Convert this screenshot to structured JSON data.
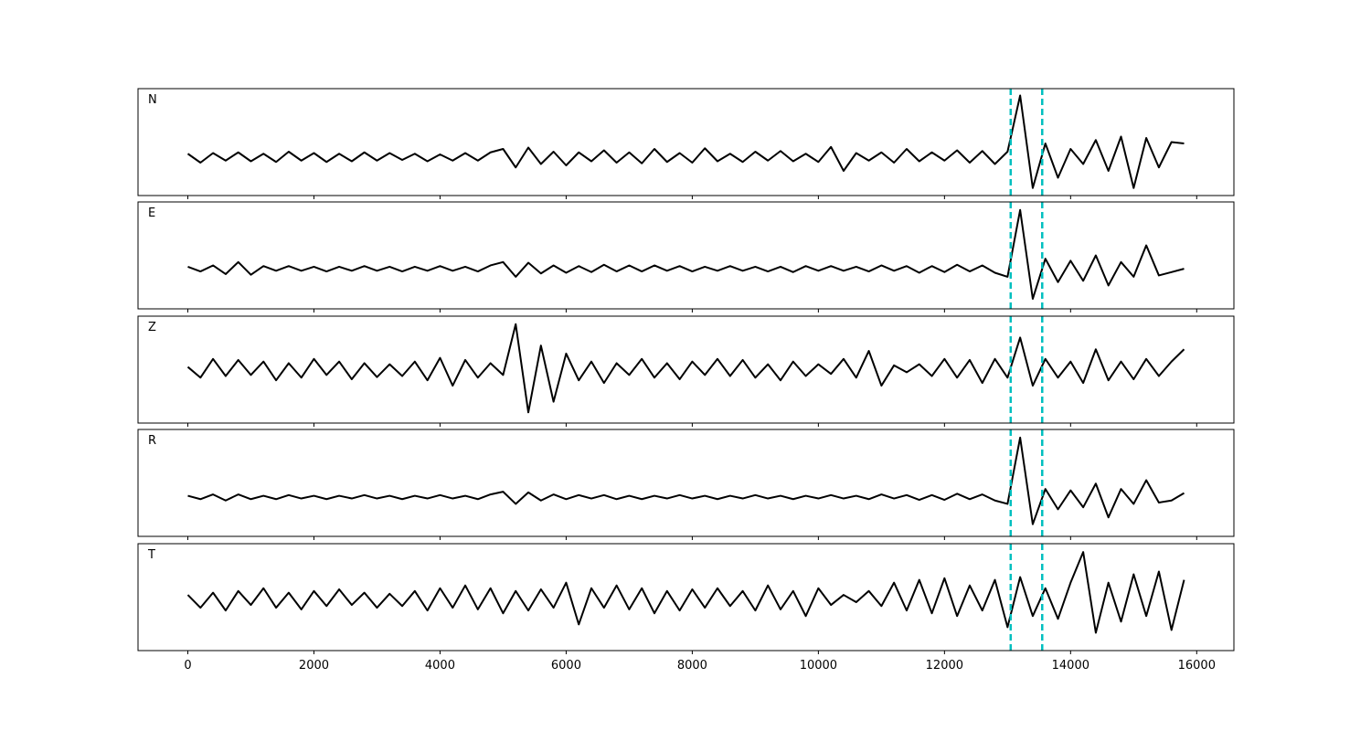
{
  "chart_data": [
    {
      "type": "line",
      "title": "N",
      "color": "#000000",
      "vlines": [
        13050,
        13550
      ],
      "vline_color": "#00bfbf",
      "xlim": [
        -790,
        16590
      ],
      "ylim": [
        -0.56,
        1
      ],
      "xticks": [
        0,
        2000,
        4000,
        6000,
        8000,
        10000,
        12000,
        14000,
        16000
      ],
      "x": [
        0,
        200,
        400,
        600,
        800,
        1000,
        1200,
        1400,
        1600,
        1800,
        2000,
        2200,
        2400,
        2600,
        2800,
        3000,
        3200,
        3400,
        3600,
        3800,
        4000,
        4200,
        4400,
        4600,
        4800,
        5000,
        5200,
        5400,
        5600,
        5800,
        6000,
        6200,
        6400,
        6600,
        6800,
        7000,
        7200,
        7400,
        7600,
        7800,
        8000,
        8200,
        8400,
        8600,
        8800,
        9000,
        9200,
        9400,
        9600,
        9800,
        10000,
        10200,
        10400,
        10600,
        10800,
        11000,
        11200,
        11400,
        11600,
        11800,
        12000,
        12200,
        12400,
        12600,
        12800,
        13000,
        13200,
        13400,
        13600,
        13800,
        14000,
        14200,
        14400,
        14600,
        14800,
        15000,
        15200,
        15400,
        15600,
        15800
      ],
      "values": [
        0.05,
        -0.08,
        0.06,
        -0.05,
        0.07,
        -0.06,
        0.05,
        -0.07,
        0.08,
        -0.05,
        0.06,
        -0.07,
        0.05,
        -0.06,
        0.07,
        -0.05,
        0.06,
        -0.04,
        0.05,
        -0.06,
        0.04,
        -0.05,
        0.06,
        -0.05,
        0.07,
        0.12,
        -0.15,
        0.14,
        -0.1,
        0.08,
        -0.12,
        0.07,
        -0.06,
        0.1,
        -0.08,
        0.07,
        -0.09,
        0.12,
        -0.07,
        0.06,
        -0.08,
        0.13,
        -0.06,
        0.05,
        -0.07,
        0.08,
        -0.05,
        0.09,
        -0.06,
        0.05,
        -0.07,
        0.15,
        -0.2,
        0.06,
        -0.05,
        0.07,
        -0.08,
        0.12,
        -0.06,
        0.07,
        -0.05,
        0.1,
        -0.08,
        0.09,
        -0.1,
        0.08,
        0.9,
        -0.45,
        0.2,
        -0.3,
        0.12,
        -0.1,
        0.25,
        -0.2,
        0.3,
        -0.45,
        0.28,
        -0.15,
        0.22,
        0.2
      ]
    },
    {
      "type": "line",
      "title": "E",
      "color": "#000000",
      "vlines": [
        13050,
        13550
      ],
      "vline_color": "#00bfbf",
      "xlim": [
        -790,
        16590
      ],
      "ylim": [
        -0.6,
        1
      ],
      "xticks": [
        0,
        2000,
        4000,
        6000,
        8000,
        10000,
        12000,
        14000,
        16000
      ],
      "x": [
        0,
        200,
        400,
        600,
        800,
        1000,
        1200,
        1400,
        1600,
        1800,
        2000,
        2200,
        2400,
        2600,
        2800,
        3000,
        3200,
        3400,
        3600,
        3800,
        4000,
        4200,
        4400,
        4600,
        4800,
        5000,
        5200,
        5400,
        5600,
        5800,
        6000,
        6200,
        6400,
        6600,
        6800,
        7000,
        7200,
        7400,
        7600,
        7800,
        8000,
        8200,
        8400,
        8600,
        8800,
        9000,
        9200,
        9400,
        9600,
        9800,
        10000,
        10200,
        10400,
        10600,
        10800,
        11000,
        11200,
        11400,
        11600,
        11800,
        12000,
        12200,
        12400,
        12600,
        12800,
        13000,
        13200,
        13400,
        13600,
        13800,
        14000,
        14200,
        14400,
        14600,
        14800,
        15000,
        15200,
        15400,
        15600,
        15800
      ],
      "values": [
        0.03,
        -0.04,
        0.05,
        -0.08,
        0.1,
        -0.09,
        0.04,
        -0.03,
        0.04,
        -0.03,
        0.03,
        -0.04,
        0.03,
        -0.03,
        0.04,
        -0.03,
        0.03,
        -0.04,
        0.03,
        -0.03,
        0.04,
        -0.03,
        0.03,
        -0.04,
        0.05,
        0.1,
        -0.12,
        0.09,
        -0.07,
        0.05,
        -0.06,
        0.04,
        -0.05,
        0.06,
        -0.04,
        0.05,
        -0.04,
        0.05,
        -0.03,
        0.04,
        -0.04,
        0.03,
        -0.03,
        0.04,
        -0.03,
        0.03,
        -0.04,
        0.03,
        -0.05,
        0.04,
        -0.03,
        0.04,
        -0.03,
        0.03,
        -0.04,
        0.05,
        -0.03,
        0.04,
        -0.06,
        0.04,
        -0.05,
        0.06,
        -0.04,
        0.05,
        -0.06,
        -0.12,
        0.88,
        -0.45,
        0.15,
        -0.2,
        0.12,
        -0.18,
        0.2,
        -0.25,
        0.1,
        -0.12,
        0.35,
        -0.1,
        -0.05,
        0.0
      ]
    },
    {
      "type": "line",
      "title": "Z",
      "color": "#000000",
      "vlines": [
        13050,
        13550
      ],
      "vline_color": "#00bfbf",
      "xlim": [
        -790,
        16590
      ],
      "ylim": [
        -1,
        1
      ],
      "xticks": [
        0,
        2000,
        4000,
        6000,
        8000,
        10000,
        12000,
        14000,
        16000
      ],
      "x": [
        0,
        200,
        400,
        600,
        800,
        1000,
        1200,
        1400,
        1600,
        1800,
        2000,
        2200,
        2400,
        2600,
        2800,
        3000,
        3200,
        3400,
        3600,
        3800,
        4000,
        4200,
        4400,
        4600,
        4800,
        5000,
        5200,
        5400,
        5600,
        5800,
        6000,
        6200,
        6400,
        6600,
        6800,
        7000,
        7200,
        7400,
        7600,
        7800,
        8000,
        8200,
        8400,
        8600,
        8800,
        9000,
        9200,
        9400,
        9600,
        9800,
        10000,
        10200,
        10400,
        10600,
        10800,
        11000,
        11200,
        11400,
        11600,
        11800,
        12000,
        12200,
        12400,
        12600,
        12800,
        13000,
        13200,
        13400,
        13600,
        13800,
        14000,
        14200,
        14400,
        14600,
        14800,
        15000,
        15200,
        15400,
        15600,
        15800
      ],
      "values": [
        0.05,
        -0.15,
        0.2,
        -0.12,
        0.18,
        -0.1,
        0.15,
        -0.2,
        0.12,
        -0.15,
        0.2,
        -0.1,
        0.15,
        -0.18,
        0.12,
        -0.14,
        0.1,
        -0.12,
        0.15,
        -0.2,
        0.22,
        -0.3,
        0.18,
        -0.15,
        0.12,
        -0.1,
        0.85,
        -0.8,
        0.45,
        -0.6,
        0.3,
        -0.2,
        0.15,
        -0.25,
        0.12,
        -0.1,
        0.2,
        -0.15,
        0.12,
        -0.18,
        0.15,
        -0.1,
        0.2,
        -0.12,
        0.18,
        -0.15,
        0.1,
        -0.2,
        0.15,
        -0.12,
        0.1,
        -0.08,
        0.2,
        -0.15,
        0.35,
        -0.3,
        0.08,
        -0.05,
        0.1,
        -0.12,
        0.2,
        -0.15,
        0.18,
        -0.25,
        0.2,
        -0.15,
        0.6,
        -0.3,
        0.2,
        -0.15,
        0.15,
        -0.25,
        0.38,
        -0.2,
        0.15,
        -0.18,
        0.2,
        -0.12,
        0.15,
        0.38
      ]
    },
    {
      "type": "line",
      "title": "R",
      "color": "#000000",
      "vlines": [
        13050,
        13550
      ],
      "vline_color": "#00bfbf",
      "xlim": [
        -790,
        16590
      ],
      "ylim": [
        -0.58,
        1
      ],
      "xticks": [
        0,
        2000,
        4000,
        6000,
        8000,
        10000,
        12000,
        14000,
        16000
      ],
      "x": [
        0,
        200,
        400,
        600,
        800,
        1000,
        1200,
        1400,
        1600,
        1800,
        2000,
        2200,
        2400,
        2600,
        2800,
        3000,
        3200,
        3400,
        3600,
        3800,
        4000,
        4200,
        4400,
        4600,
        4800,
        5000,
        5200,
        5400,
        5600,
        5800,
        6000,
        6200,
        6400,
        6600,
        6800,
        7000,
        7200,
        7400,
        7600,
        7800,
        8000,
        8200,
        8400,
        8600,
        8800,
        9000,
        9200,
        9400,
        9600,
        9800,
        10000,
        10200,
        10400,
        10600,
        10800,
        11000,
        11200,
        11400,
        11600,
        11800,
        12000,
        12200,
        12400,
        12600,
        12800,
        13000,
        13200,
        13400,
        13600,
        13800,
        14000,
        14200,
        14400,
        14600,
        14800,
        15000,
        15200,
        15400,
        15600,
        15800
      ],
      "values": [
        0.02,
        -0.03,
        0.04,
        -0.05,
        0.04,
        -0.03,
        0.02,
        -0.03,
        0.03,
        -0.02,
        0.02,
        -0.03,
        0.02,
        -0.02,
        0.03,
        -0.02,
        0.02,
        -0.03,
        0.02,
        -0.02,
        0.03,
        -0.02,
        0.02,
        -0.03,
        0.04,
        0.08,
        -0.1,
        0.07,
        -0.05,
        0.04,
        -0.03,
        0.03,
        -0.02,
        0.03,
        -0.03,
        0.02,
        -0.03,
        0.02,
        -0.02,
        0.03,
        -0.02,
        0.02,
        -0.03,
        0.02,
        -0.02,
        0.03,
        -0.02,
        0.02,
        -0.03,
        0.02,
        -0.02,
        0.03,
        -0.02,
        0.02,
        -0.03,
        0.04,
        -0.02,
        0.03,
        -0.04,
        0.03,
        -0.04,
        0.05,
        -0.03,
        0.04,
        -0.05,
        -0.1,
        0.88,
        -0.4,
        0.12,
        -0.18,
        0.1,
        -0.15,
        0.2,
        -0.3,
        0.12,
        -0.1,
        0.25,
        -0.08,
        -0.05,
        0.06
      ]
    },
    {
      "type": "line",
      "title": "T",
      "color": "#000000",
      "vlines": [
        13050,
        13550
      ],
      "vline_color": "#00bfbf",
      "xlim": [
        -790,
        16590
      ],
      "ylim": [
        -0.92,
        1
      ],
      "xticks": [
        0,
        2000,
        4000,
        6000,
        8000,
        10000,
        12000,
        14000,
        16000
      ],
      "x": [
        0,
        200,
        400,
        600,
        800,
        1000,
        1200,
        1400,
        1600,
        1800,
        2000,
        2200,
        2400,
        2600,
        2800,
        3000,
        3200,
        3400,
        3600,
        3800,
        4000,
        4200,
        4400,
        4600,
        4800,
        5000,
        5200,
        5400,
        5600,
        5800,
        6000,
        6200,
        6400,
        6600,
        6800,
        7000,
        7200,
        7400,
        7600,
        7800,
        8000,
        8200,
        8400,
        8600,
        8800,
        9000,
        9200,
        9400,
        9600,
        9800,
        10000,
        10200,
        10400,
        10600,
        10800,
        11000,
        11200,
        11400,
        11600,
        11800,
        12000,
        12200,
        12400,
        12600,
        12800,
        13000,
        13200,
        13400,
        13600,
        13800,
        14000,
        14200,
        14400,
        14600,
        14800,
        15000,
        15200,
        15400,
        15600,
        15800
      ],
      "values": [
        0.08,
        -0.15,
        0.12,
        -0.2,
        0.15,
        -0.1,
        0.2,
        -0.15,
        0.12,
        -0.18,
        0.15,
        -0.12,
        0.18,
        -0.1,
        0.12,
        -0.15,
        0.1,
        -0.12,
        0.15,
        -0.2,
        0.2,
        -0.15,
        0.25,
        -0.18,
        0.2,
        -0.25,
        0.15,
        -0.2,
        0.18,
        -0.15,
        0.3,
        -0.45,
        0.2,
        -0.15,
        0.25,
        -0.18,
        0.2,
        -0.25,
        0.15,
        -0.2,
        0.18,
        -0.15,
        0.2,
        -0.12,
        0.15,
        -0.2,
        0.25,
        -0.18,
        0.15,
        -0.3,
        0.2,
        -0.1,
        0.08,
        -0.05,
        0.15,
        -0.12,
        0.3,
        -0.2,
        0.35,
        -0.25,
        0.38,
        -0.3,
        0.25,
        -0.2,
        0.35,
        -0.5,
        0.4,
        -0.3,
        0.2,
        -0.35,
        0.3,
        0.85,
        -0.6,
        0.3,
        -0.4,
        0.45,
        -0.3,
        0.5,
        -0.55,
        0.35
      ]
    }
  ]
}
